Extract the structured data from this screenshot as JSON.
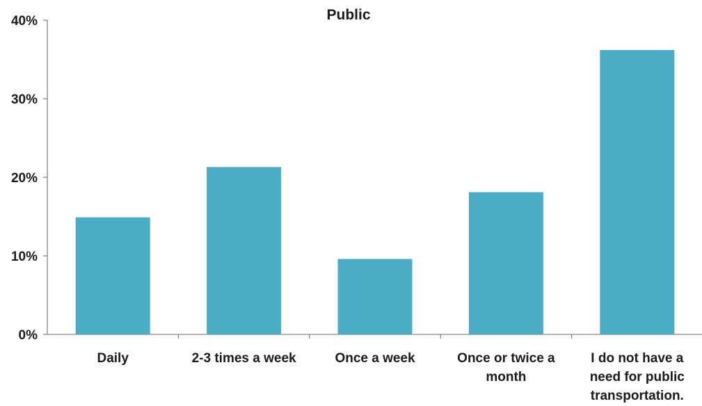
{
  "chart_data": {
    "type": "bar",
    "title": "Public",
    "xlabel": "",
    "ylabel": "",
    "categories": [
      [
        "Daily"
      ],
      [
        "2-3 times a week"
      ],
      [
        "Once a week"
      ],
      [
        "Once or twice a",
        "month"
      ],
      [
        "I do not have a",
        "need for public",
        "transportation."
      ]
    ],
    "series": [
      {
        "values": [
          14.9,
          21.3,
          9.6,
          18.1,
          36.2
        ]
      }
    ],
    "ylim": [
      0,
      40
    ],
    "yticks": [
      "0%",
      "10%",
      "20%",
      "30%",
      "40%"
    ],
    "ytick_values": [
      0,
      10,
      20,
      30,
      40
    ],
    "grid": false,
    "legend": "none",
    "bar_color": "#4BACC6",
    "axis_color": "#868686"
  }
}
